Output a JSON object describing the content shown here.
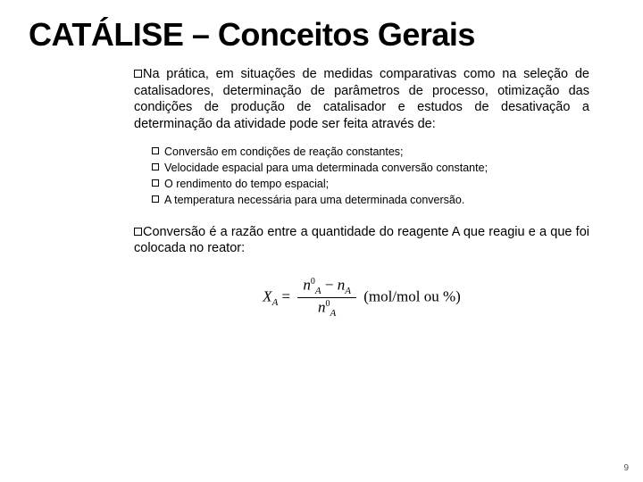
{
  "title": "CATÁLISE – Conceitos Gerais",
  "para1": "Na prática, em situações de medidas comparativas como na seleção de catalisadores, determinação de parâmetros de processo, otimização das condições de produção de catalisador e estudos de desativação a determinação da atividade pode ser feita através de:",
  "sub": {
    "a": "Conversão em condições de reação constantes;",
    "b": "Velocidade espacial para uma determinada conversão constante;",
    "c": "O rendimento do tempo espacial;",
    "d": "A temperatura necessária para uma determinada conversão."
  },
  "para2": "Conversão é a razão entre a quantidade do reagente A que reagiu e a que foi colocada no reator:",
  "formula": {
    "lhs": "X",
    "lhs_sub": "A",
    "eq": " = ",
    "num_l": "n",
    "num_l_sub": "A",
    "num_l_sup": "0",
    "minus": " − ",
    "num_r": "n",
    "num_r_sub": "A",
    "den": "n",
    "den_sub": "A",
    "den_sup": "0",
    "unit": " (mol/mol ou %)"
  },
  "page": "9"
}
